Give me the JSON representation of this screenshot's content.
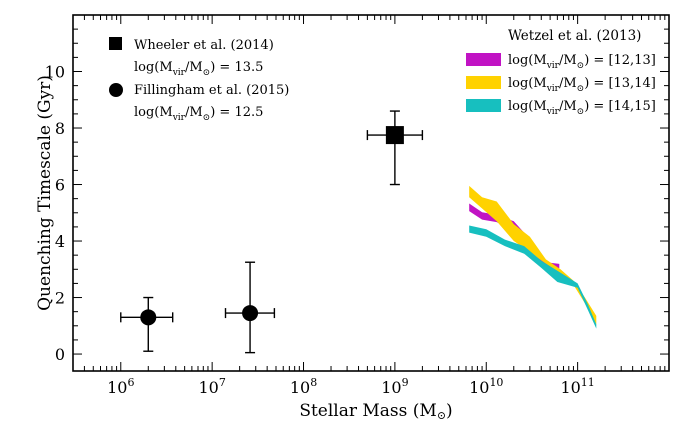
{
  "chart_data": {
    "type": "scatter",
    "title": "",
    "xlabel": "Stellar Mass (M⊙)",
    "ylabel": "Quenching Timescale (Gyr)",
    "xscale": "log",
    "xlim": [
      300000,
      1000000000000
    ],
    "ylim": [
      -0.6,
      12
    ],
    "x_ticks": [
      {
        "value": 1000000,
        "base": "10",
        "exp": "6"
      },
      {
        "value": 10000000,
        "base": "10",
        "exp": "7"
      },
      {
        "value": 100000000,
        "base": "10",
        "exp": "8"
      },
      {
        "value": 1000000000,
        "base": "10",
        "exp": "9"
      },
      {
        "value": 10000000000,
        "base": "10",
        "exp": "10"
      },
      {
        "value": 100000000000,
        "base": "10",
        "exp": "11"
      }
    ],
    "y_ticks": [
      {
        "value": 0,
        "label": "0"
      },
      {
        "value": 2,
        "label": "2"
      },
      {
        "value": 4,
        "label": "4"
      },
      {
        "value": 6,
        "label": "6"
      },
      {
        "value": 8,
        "label": "8"
      },
      {
        "value": 10,
        "label": "10"
      }
    ],
    "points": [
      {
        "name": "Wheeler et al. (2014)",
        "marker": "square",
        "x": 1000000000,
        "y": 7.75,
        "xerr": [
          500000000,
          2000000000
        ],
        "yerr": [
          6.0,
          8.6
        ]
      },
      {
        "name": "Fillingham et al. (2015)",
        "marker": "circle",
        "x": 2000000,
        "y": 1.3,
        "xerr": [
          1000000,
          3700000
        ],
        "yerr": [
          0.1,
          2.0
        ]
      },
      {
        "name": "Fillingham et al. (2015)",
        "marker": "circle",
        "x": 26000000,
        "y": 1.45,
        "xerr": [
          14000000,
          48000000
        ],
        "yerr": [
          0.05,
          3.25
        ]
      }
    ],
    "bands": [
      {
        "name": "log(M_vir/M_⊙)=[12,13]",
        "color": "#c113c4",
        "x": [
          6500000000,
          9000000000,
          13000000000,
          20000000000,
          27000000000,
          40000000000,
          50000000000,
          63000000000
        ],
        "upper": [
          5.33,
          5.02,
          4.93,
          4.7,
          4.23,
          3.42,
          3.23,
          3.19
        ],
        "lower": [
          5.06,
          4.76,
          4.67,
          4.35,
          3.88,
          3.26,
          3.07,
          3.04
        ]
      },
      {
        "name": "log(M_vir/M_⊙)=[13,14]",
        "color": "#ffd200",
        "x": [
          6500000000,
          9000000000,
          13000000000,
          20000000000,
          30000000000,
          45000000000,
          65000000000,
          90000000000,
          120000000000,
          160000000000
        ],
        "upper": [
          5.95,
          5.55,
          5.4,
          4.6,
          4.15,
          3.35,
          3.0,
          2.6,
          2.0,
          1.35
        ],
        "lower": [
          5.55,
          5.15,
          4.7,
          4.0,
          3.6,
          3.2,
          2.85,
          2.45,
          1.8,
          1.05
        ]
      },
      {
        "name": "log(M_vir/M_⊙)=[14,15]",
        "color": "#17bfbf",
        "x": [
          6500000000,
          10000000000,
          16000000000,
          26000000000,
          40000000000,
          60000000000,
          100000000000,
          130000000000,
          160000000000
        ],
        "upper": [
          4.55,
          4.42,
          4.05,
          3.82,
          3.3,
          2.95,
          2.5,
          1.75,
          1.05
        ],
        "lower": [
          4.3,
          4.15,
          3.82,
          3.55,
          3.05,
          2.55,
          2.35,
          1.55,
          0.9
        ]
      }
    ],
    "legend_left": {
      "placement": "top-left",
      "entries": [
        {
          "marker": "square",
          "label": "Wheeler et al. (2014)",
          "sub": "log(M_vir/M_⊙)=13.5"
        },
        {
          "marker": "circle",
          "label": "Fillingham et al. (2015)",
          "sub": "log(M_vir/M_⊙)=12.5"
        }
      ]
    },
    "legend_right": {
      "placement": "top-right",
      "title": "Wetzel et al. (2013)",
      "entries": [
        {
          "color": "#c113c4",
          "label": "log(M_vir/M_⊙)=[12,13]"
        },
        {
          "color": "#ffd200",
          "label": "log(M_vir/M_⊙)=[13,14]"
        },
        {
          "color": "#17bfbf",
          "label": "log(M_vir/M_⊙)=[14,15]"
        }
      ]
    }
  }
}
